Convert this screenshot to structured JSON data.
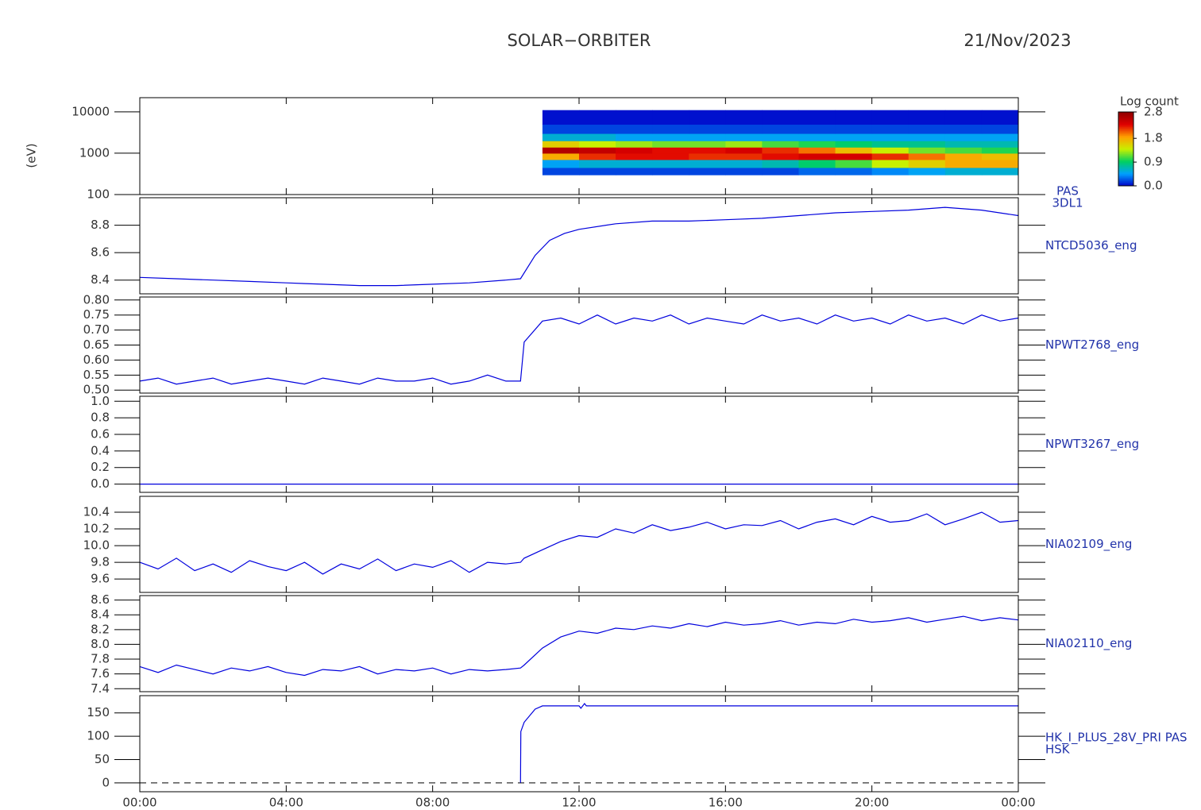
{
  "header": {
    "title": "SOLAR−ORBITER",
    "date": "21/Nov/2023"
  },
  "chart_data": [
    {
      "type": "heatmap",
      "ylabel": "(eV)",
      "right_label": [
        "PAS",
        "3DL1"
      ],
      "log_y": true,
      "xlim": [
        0,
        24
      ],
      "ylim": [
        100,
        22000
      ],
      "yticks": [
        100,
        1000,
        10000
      ],
      "x_bins": [
        11,
        12,
        13,
        14,
        15,
        16,
        17,
        18,
        19,
        20,
        21,
        22,
        23,
        24
      ],
      "y_bins": [
        300,
        450,
        700,
        1000,
        1400,
        2000,
        3000,
        5000,
        11000
      ],
      "values": [
        [
          0.2,
          0.2,
          0.2,
          0.2,
          0.2,
          0.2,
          0.2,
          0.3,
          0.3,
          0.4,
          0.5,
          0.6,
          0.6
        ],
        [
          0.5,
          0.6,
          0.6,
          0.6,
          0.6,
          0.6,
          0.7,
          0.9,
          1.1,
          1.4,
          1.6,
          1.8,
          1.8
        ],
        [
          1.8,
          2.2,
          2.3,
          2.3,
          2.2,
          2.2,
          2.3,
          2.4,
          2.4,
          2.2,
          2.0,
          1.8,
          1.7
        ],
        [
          2.6,
          2.5,
          2.4,
          2.3,
          2.3,
          2.4,
          2.2,
          2.0,
          1.7,
          1.4,
          1.2,
          1.1,
          1.0
        ],
        [
          1.6,
          1.4,
          1.3,
          1.2,
          1.2,
          1.3,
          1.1,
          1.0,
          0.9,
          0.8,
          0.8,
          0.7,
          0.7
        ],
        [
          0.6,
          0.6,
          0.5,
          0.5,
          0.5,
          0.5,
          0.5,
          0.5,
          0.5,
          0.5,
          0.5,
          0.5,
          0.5
        ],
        [
          0.2,
          0.2,
          0.2,
          0.2,
          0.2,
          0.2,
          0.2,
          0.2,
          0.2,
          0.2,
          0.2,
          0.2,
          0.2
        ],
        [
          0.05,
          0.05,
          0.05,
          0.05,
          0.05,
          0.05,
          0.05,
          0.05,
          0.05,
          0.05,
          0.05,
          0.05,
          0.05
        ]
      ],
      "colorbar_title": "Log count",
      "clim": [
        0,
        2.8
      ],
      "colorbar_ticks": [
        {
          "value": 0,
          "label": "0.0"
        },
        0.9,
        1.8,
        2.8
      ],
      "colormap": [
        "#0000c8",
        "#00a0ff",
        "#00d060",
        "#c8f000",
        "#ffa000",
        "#e00000",
        "#900000"
      ]
    },
    {
      "type": "line",
      "right_label": [
        "NTCD5036_eng"
      ],
      "color": "#0000dd",
      "xlim": [
        0,
        24
      ],
      "ylim": [
        8.3,
        9.0
      ],
      "yticks": [
        8.4,
        8.6,
        8.8
      ],
      "x": [
        0,
        1,
        2,
        3,
        4,
        5,
        6,
        7,
        8,
        9,
        10,
        10.4,
        10.8,
        11.2,
        11.6,
        12,
        13,
        14,
        15,
        16,
        17,
        18,
        19,
        20,
        21,
        22,
        23,
        24
      ],
      "values": [
        8.42,
        8.41,
        8.4,
        8.39,
        8.38,
        8.37,
        8.36,
        8.36,
        8.37,
        8.38,
        8.4,
        8.41,
        8.58,
        8.69,
        8.74,
        8.77,
        8.81,
        8.83,
        8.83,
        8.84,
        8.85,
        8.87,
        8.89,
        8.9,
        8.91,
        8.93,
        8.91,
        8.87
      ]
    },
    {
      "type": "line",
      "right_label": [
        "NPWT2768_eng"
      ],
      "color": "#0000dd",
      "xlim": [
        0,
        24
      ],
      "ylim": [
        0.49,
        0.81
      ],
      "yticks": [
        {
          "value": 0.5,
          "label": "0.50"
        },
        0.55,
        {
          "value": 0.6,
          "label": "0.60"
        },
        0.65,
        {
          "value": 0.7,
          "label": "0.70"
        },
        0.75,
        {
          "value": 0.8,
          "label": "0.80"
        }
      ],
      "x": [
        0,
        0.5,
        1,
        1.5,
        2,
        2.5,
        3,
        3.5,
        4,
        4.5,
        5,
        5.5,
        6,
        6.5,
        7,
        7.5,
        8,
        8.5,
        9,
        9.5,
        10,
        10.4,
        10.5,
        11,
        11.5,
        12,
        12.5,
        13,
        13.5,
        14,
        14.5,
        15,
        15.5,
        16,
        16.5,
        17,
        17.5,
        18,
        18.5,
        19,
        19.5,
        20,
        20.5,
        21,
        21.5,
        22,
        22.5,
        23,
        23.5,
        24
      ],
      "values": [
        0.53,
        0.54,
        0.52,
        0.53,
        0.54,
        0.52,
        0.53,
        0.54,
        0.53,
        0.52,
        0.54,
        0.53,
        0.52,
        0.54,
        0.53,
        0.53,
        0.54,
        0.52,
        0.53,
        0.55,
        0.53,
        0.53,
        0.66,
        0.73,
        0.74,
        0.72,
        0.75,
        0.72,
        0.74,
        0.73,
        0.75,
        0.72,
        0.74,
        0.73,
        0.72,
        0.75,
        0.73,
        0.74,
        0.72,
        0.75,
        0.73,
        0.74,
        0.72,
        0.75,
        0.73,
        0.74,
        0.72,
        0.75,
        0.73,
        0.74
      ]
    },
    {
      "type": "line",
      "right_label": [
        "NPWT3267_eng"
      ],
      "color": "#0000dd",
      "xlim": [
        0,
        24
      ],
      "ylim": [
        -0.1,
        1.06
      ],
      "yticks": [
        {
          "value": 0,
          "label": "0.0"
        },
        0.2,
        0.4,
        0.6,
        0.8,
        {
          "value": 1,
          "label": "1.0"
        }
      ],
      "x": [
        0,
        24
      ],
      "values": [
        0,
        0
      ]
    },
    {
      "type": "line",
      "right_label": [
        "NIA02109_eng"
      ],
      "color": "#0000dd",
      "xlim": [
        0,
        24
      ],
      "ylim": [
        9.44,
        10.59
      ],
      "yticks": [
        9.6,
        9.8,
        {
          "value": 10,
          "label": "10.0"
        },
        10.2,
        10.4
      ],
      "x": [
        0,
        0.5,
        1,
        1.5,
        2,
        2.5,
        3,
        3.5,
        4,
        4.5,
        5,
        5.5,
        6,
        6.5,
        7,
        7.5,
        8,
        8.5,
        9,
        9.5,
        10,
        10.4,
        10.5,
        11,
        11.5,
        12,
        12.5,
        13,
        13.5,
        14,
        14.5,
        15,
        15.5,
        16,
        16.5,
        17,
        17.5,
        18,
        18.5,
        19,
        19.5,
        20,
        20.5,
        21,
        21.5,
        22,
        22.5,
        23,
        23.5,
        24
      ],
      "values": [
        9.8,
        9.72,
        9.85,
        9.7,
        9.78,
        9.68,
        9.82,
        9.75,
        9.7,
        9.8,
        9.66,
        9.78,
        9.72,
        9.84,
        9.7,
        9.78,
        9.74,
        9.82,
        9.68,
        9.8,
        9.78,
        9.8,
        9.85,
        9.95,
        10.05,
        10.12,
        10.1,
        10.2,
        10.15,
        10.25,
        10.18,
        10.22,
        10.28,
        10.2,
        10.25,
        10.24,
        10.3,
        10.2,
        10.28,
        10.32,
        10.25,
        10.35,
        10.28,
        10.3,
        10.38,
        10.25,
        10.32,
        10.4,
        10.28,
        10.3
      ]
    },
    {
      "type": "line",
      "right_label": [
        "NIA02110_eng"
      ],
      "color": "#0000dd",
      "xlim": [
        0,
        24
      ],
      "ylim": [
        7.36,
        8.66
      ],
      "yticks": [
        7.4,
        7.6,
        7.8,
        {
          "value": 8,
          "label": "8.0"
        },
        8.2,
        8.4,
        8.6
      ],
      "x": [
        0,
        0.5,
        1,
        1.5,
        2,
        2.5,
        3,
        3.5,
        4,
        4.5,
        5,
        5.5,
        6,
        6.5,
        7,
        7.5,
        8,
        8.5,
        9,
        9.5,
        10,
        10.4,
        10.5,
        11,
        11.5,
        12,
        12.5,
        13,
        13.5,
        14,
        14.5,
        15,
        15.5,
        16,
        16.5,
        17,
        17.5,
        18,
        18.5,
        19,
        19.5,
        20,
        20.5,
        21,
        21.5,
        22,
        22.5,
        23,
        23.5,
        24
      ],
      "values": [
        7.7,
        7.62,
        7.72,
        7.66,
        7.6,
        7.68,
        7.64,
        7.7,
        7.62,
        7.58,
        7.66,
        7.64,
        7.7,
        7.6,
        7.66,
        7.64,
        7.68,
        7.6,
        7.66,
        7.64,
        7.66,
        7.68,
        7.72,
        7.95,
        8.1,
        8.18,
        8.15,
        8.22,
        8.2,
        8.25,
        8.22,
        8.28,
        8.24,
        8.3,
        8.26,
        8.28,
        8.32,
        8.26,
        8.3,
        8.28,
        8.34,
        8.3,
        8.32,
        8.36,
        8.3,
        8.34,
        8.38,
        8.32,
        8.36,
        8.33
      ]
    },
    {
      "type": "line",
      "right_label": [
        "HK_I_PLUS_28V_PRI PAS",
        "HSK"
      ],
      "color": "#0000dd",
      "xlim": [
        0,
        24
      ],
      "ylim": [
        -19,
        187
      ],
      "yticks": [
        0,
        50,
        100,
        150
      ],
      "reference_line": 0,
      "x": [
        10.4,
        10.41,
        10.5,
        10.8,
        11,
        12,
        12.05,
        12.15,
        12.2,
        24
      ],
      "values": [
        0,
        110,
        130,
        158,
        165,
        165,
        160,
        170,
        165,
        165
      ],
      "xticks": [
        {
          "value": 0,
          "label": "00:00"
        },
        {
          "value": 4,
          "label": "04:00"
        },
        {
          "value": 8,
          "label": "08:00"
        },
        {
          "value": 12,
          "label": "12:00"
        },
        {
          "value": 16,
          "label": "16:00"
        },
        {
          "value": 20,
          "label": "20:00"
        },
        {
          "value": 24,
          "label": "00:00"
        }
      ]
    }
  ]
}
